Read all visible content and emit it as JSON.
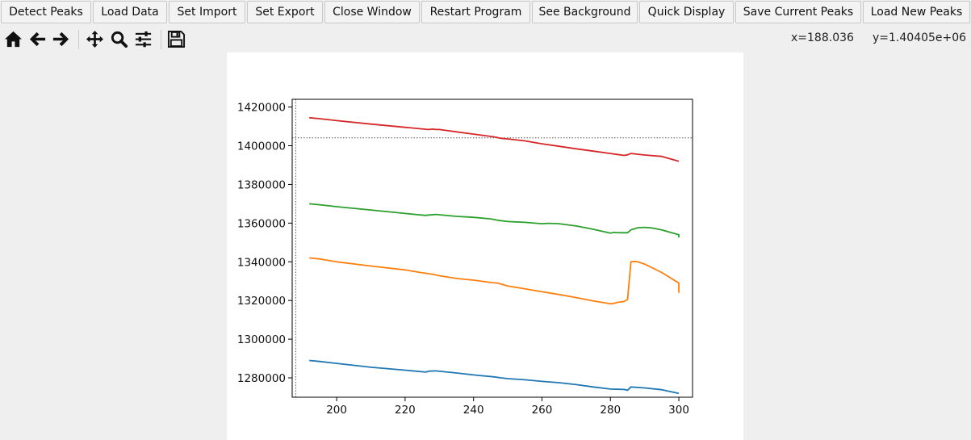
{
  "buttons": [
    {
      "label": "Detect Peaks"
    },
    {
      "label": "Load Data"
    },
    {
      "label": "Set Import"
    },
    {
      "label": "Set Export"
    },
    {
      "label": "Close Window"
    },
    {
      "label": "Restart Program"
    },
    {
      "label": "See Background"
    },
    {
      "label": "Quick Display"
    },
    {
      "label": "Save Current Peaks"
    },
    {
      "label": "Load New Peaks"
    }
  ],
  "navbar": {
    "tools": [
      "home-icon",
      "back-arrow-icon",
      "forward-arrow-icon",
      "pan-icon",
      "zoom-icon",
      "configure-subplots-icon",
      "save-icon"
    ],
    "coords": {
      "x": "x=188.036",
      "y": "y=1.40405e+06"
    }
  },
  "chart_data": {
    "type": "line",
    "title": "",
    "xlabel": "",
    "ylabel": "",
    "xlim": [
      187,
      304
    ],
    "ylim": [
      1270000,
      1424000
    ],
    "xticks": [
      200,
      220,
      240,
      260,
      280,
      300
    ],
    "xtick_labels": [
      "200",
      "220",
      "240",
      "260",
      "280",
      "300"
    ],
    "yticks": [
      1280000,
      1300000,
      1320000,
      1340000,
      1360000,
      1380000,
      1400000,
      1420000
    ],
    "ytick_labels": [
      "1280000",
      "1300000",
      "1320000",
      "1340000",
      "1360000",
      "1380000",
      "1400000",
      "1420000"
    ],
    "grid": false,
    "crosshair": {
      "x": 188.036,
      "y": 1404050
    },
    "series": [
      {
        "color": "#1f77b4",
        "x": [
          192,
          195,
          200,
          210,
          220,
          226,
          227,
          229,
          235,
          240,
          246,
          248,
          250,
          255,
          260,
          265,
          270,
          275,
          280,
          284,
          285,
          286,
          290,
          295,
          300
        ],
        "y": [
          1289000,
          1288500,
          1287500,
          1285500,
          1284000,
          1283000,
          1283500,
          1283600,
          1282500,
          1281500,
          1280500,
          1280000,
          1279600,
          1279000,
          1278200,
          1277500,
          1276500,
          1275300,
          1274200,
          1274000,
          1273600,
          1275300,
          1274800,
          1273900,
          1272000
        ]
      },
      {
        "color": "#ff7f0e",
        "x": [
          192,
          195,
          200,
          210,
          220,
          225,
          228,
          230,
          235,
          240,
          245,
          247,
          250,
          255,
          260,
          265,
          270,
          275,
          280,
          281,
          282,
          284,
          285,
          286,
          287,
          288,
          290,
          295,
          300,
          300
        ],
        "y": [
          1342000,
          1341500,
          1340000,
          1337800,
          1335800,
          1334300,
          1333600,
          1332800,
          1331400,
          1330500,
          1329300,
          1329000,
          1327500,
          1326000,
          1324500,
          1323100,
          1321500,
          1319800,
          1318300,
          1318500,
          1319000,
          1319500,
          1320500,
          1340000,
          1340200,
          1340000,
          1338800,
          1334500,
          1329000,
          1324000
        ]
      },
      {
        "color": "#2ca02c",
        "x": [
          192,
          195,
          200,
          210,
          220,
          226,
          227,
          229,
          235,
          240,
          245,
          247,
          250,
          255,
          260,
          262,
          265,
          270,
          275,
          280,
          281,
          283,
          285,
          286,
          288,
          290,
          292,
          295,
          300,
          300
        ],
        "y": [
          1370000,
          1369500,
          1368500,
          1366800,
          1365000,
          1364000,
          1364200,
          1364500,
          1363500,
          1363000,
          1362200,
          1361500,
          1360800,
          1360400,
          1359700,
          1359900,
          1359700,
          1358500,
          1356800,
          1354800,
          1355200,
          1355000,
          1355000,
          1356500,
          1357600,
          1357800,
          1357500,
          1356500,
          1354000,
          1352500
        ]
      },
      {
        "color": "#d62728",
        "x": [
          192,
          195,
          200,
          210,
          220,
          226,
          227,
          228,
          229,
          230,
          235,
          240,
          246,
          248,
          250,
          255,
          260,
          265,
          270,
          275,
          280,
          282,
          284,
          285,
          286,
          290,
          295,
          300
        ],
        "y": [
          1414500,
          1414000,
          1413000,
          1411200,
          1409500,
          1408500,
          1408400,
          1408600,
          1408400,
          1408400,
          1407200,
          1406000,
          1404600,
          1403800,
          1403500,
          1402500,
          1401000,
          1399700,
          1398400,
          1397200,
          1396000,
          1395500,
          1395000,
          1395300,
          1396000,
          1395200,
          1394500,
          1392000
        ]
      }
    ]
  }
}
